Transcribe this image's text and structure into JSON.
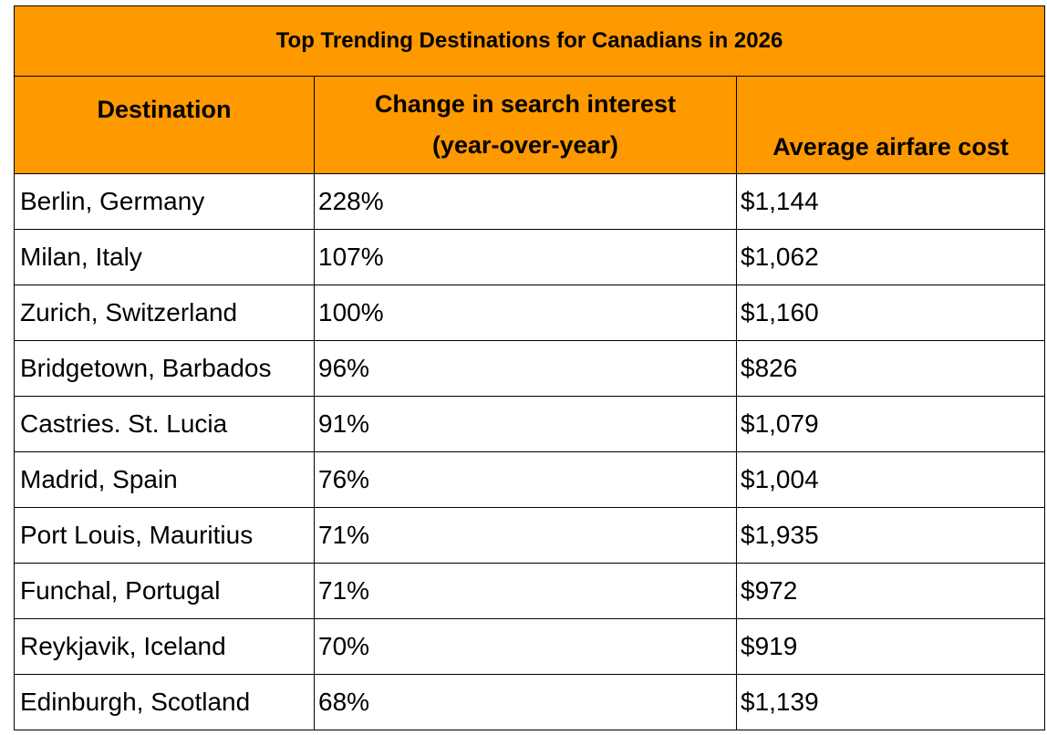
{
  "title": "Top Trending Destinations for Canadians in 2026",
  "headers": {
    "destination": "Destination",
    "change_line1": "Change in search interest",
    "change_line2": "(year-over-year)",
    "airfare": "Average airfare cost"
  },
  "rows": [
    {
      "destination": "Berlin, Germany",
      "change": "228%",
      "airfare": "$1,144"
    },
    {
      "destination": "Milan, Italy",
      "change": "107%",
      "airfare": "$1,062"
    },
    {
      "destination": "Zurich, Switzerland",
      "change": "100%",
      "airfare": "$1,160"
    },
    {
      "destination": "Bridgetown, Barbados",
      "change": "96%",
      "airfare": "$826"
    },
    {
      "destination": "Castries. St. Lucia",
      "change": "91%",
      "airfare": "$1,079"
    },
    {
      "destination": "Madrid, Spain",
      "change": "76%",
      "airfare": "$1,004"
    },
    {
      "destination": "Port Louis, Mauritius",
      "change": "71%",
      "airfare": "$1,935"
    },
    {
      "destination": "Funchal, Portugal",
      "change": "71%",
      "airfare": "$972"
    },
    {
      "destination": "Reykjavik, Iceland",
      "change": "70%",
      "airfare": "$919"
    },
    {
      "destination": "Edinburgh, Scotland",
      "change": "68%",
      "airfare": "$1,139"
    }
  ],
  "colors": {
    "header_bg": "#FF9900",
    "border": "#000000"
  }
}
